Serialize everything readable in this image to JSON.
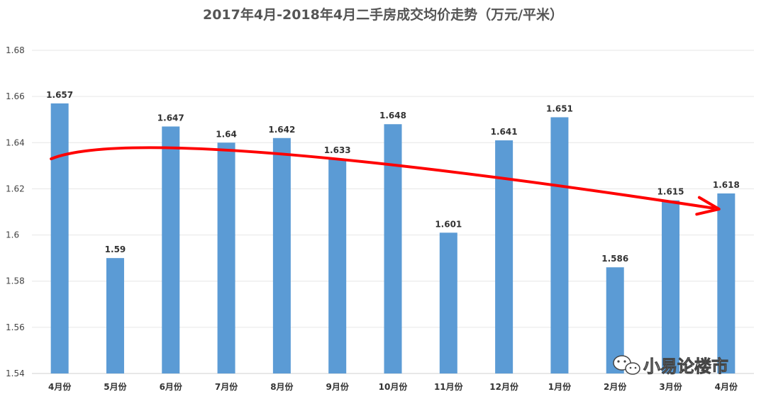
{
  "chart_data": {
    "type": "bar",
    "title": "2017年4月-2018年4月二手房成交均价走势（万元/平米）",
    "categories": [
      "4月份",
      "5月份",
      "6月份",
      "7月份",
      "8月份",
      "9月份",
      "10月份",
      "11月份",
      "12月份",
      "1月份",
      "2月份",
      "3月份",
      "4月份"
    ],
    "values": [
      1.657,
      1.59,
      1.647,
      1.64,
      1.642,
      1.633,
      1.648,
      1.601,
      1.641,
      1.651,
      1.586,
      1.615,
      1.618
    ],
    "data_labels": [
      "1.657",
      "1.59",
      "1.647",
      "1.64",
      "1.642",
      "1.633",
      "1.648",
      "1.601",
      "1.641",
      "1.651",
      "1.586",
      "1.615",
      "1.618"
    ],
    "yticks": [
      "1.54",
      "1.56",
      "1.58",
      "1.6",
      "1.62",
      "1.64",
      "1.66",
      "1.68"
    ],
    "ylim": [
      1.54,
      1.68
    ],
    "grid": true,
    "legend": "none",
    "bar_color": "#5B9BD5",
    "trend_arrow": {
      "color": "#FF0000",
      "start_value": 1.633,
      "peak_value": 1.6357,
      "end_value": 1.6116,
      "start_category_index": 0,
      "end_category_index": 12
    }
  },
  "watermark": {
    "text": "小易论楼市",
    "icon": "wechat-icon"
  }
}
